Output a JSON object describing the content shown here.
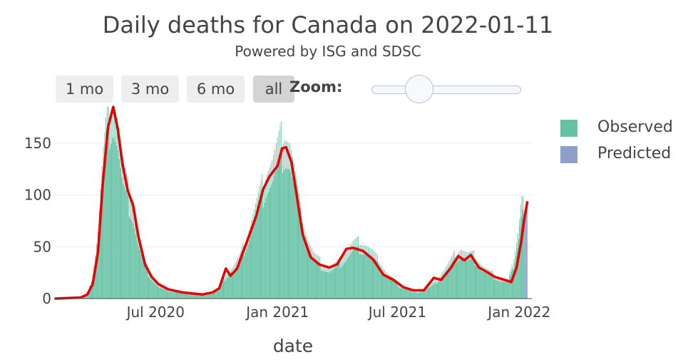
{
  "header": {
    "title": "Daily deaths for Canada on 2022-01-11",
    "subtitle": "Powered by ISG and SDSC"
  },
  "controls": {
    "range_buttons": [
      {
        "label": "1 mo",
        "active": false
      },
      {
        "label": "3 mo",
        "active": false
      },
      {
        "label": "6 mo",
        "active": false
      },
      {
        "label": "all",
        "active": true
      }
    ],
    "zoom_label": "Zoom:",
    "zoom_level": 0.27
  },
  "colors": {
    "observed": "#66c2a5",
    "predicted": "#8da0cb",
    "trend": "#e60000",
    "grid": "#e8ecf2"
  },
  "chart_data": {
    "type": "bar",
    "title": "Daily deaths for Canada on 2022-01-11",
    "subtitle": "Powered by ISG and SDSC",
    "xlabel": "date",
    "ylabel": "",
    "ylim": [
      0,
      185
    ],
    "xlim": [
      "2020-02-01",
      "2022-01-20"
    ],
    "x_ticks": [
      {
        "date": "2020-07-01",
        "label": "Jul 2020"
      },
      {
        "date": "2021-01-01",
        "label": "Jan 2021"
      },
      {
        "date": "2021-07-01",
        "label": "Jul 2021"
      },
      {
        "date": "2022-01-01",
        "label": "Jan 2022"
      }
    ],
    "y_ticks": [
      0,
      50,
      100,
      150
    ],
    "grid": true,
    "legend_position": "right",
    "series": [
      {
        "name": "Observed",
        "type": "bar",
        "color": "#66c2a5",
        "points": [
          [
            "2020-02-01",
            0
          ],
          [
            "2020-03-01",
            0
          ],
          [
            "2020-03-10",
            1
          ],
          [
            "2020-03-20",
            5
          ],
          [
            "2020-03-28",
            20
          ],
          [
            "2020-04-05",
            60
          ],
          [
            "2020-04-12",
            125
          ],
          [
            "2020-04-20",
            170
          ],
          [
            "2020-04-28",
            185
          ],
          [
            "2020-05-05",
            160
          ],
          [
            "2020-05-12",
            120
          ],
          [
            "2020-05-20",
            100
          ],
          [
            "2020-05-28",
            85
          ],
          [
            "2020-06-05",
            55
          ],
          [
            "2020-06-15",
            32
          ],
          [
            "2020-06-25",
            20
          ],
          [
            "2020-07-05",
            12
          ],
          [
            "2020-07-20",
            8
          ],
          [
            "2020-08-10",
            6
          ],
          [
            "2020-08-25",
            5
          ],
          [
            "2020-09-10",
            4
          ],
          [
            "2020-09-25",
            6
          ],
          [
            "2020-10-05",
            10
          ],
          [
            "2020-10-15",
            22
          ],
          [
            "2020-10-25",
            28
          ],
          [
            "2020-11-05",
            38
          ],
          [
            "2020-11-15",
            55
          ],
          [
            "2020-11-25",
            75
          ],
          [
            "2020-12-05",
            95
          ],
          [
            "2020-12-15",
            115
          ],
          [
            "2020-12-25",
            125
          ],
          [
            "2021-01-05",
            145
          ],
          [
            "2021-01-12",
            150
          ],
          [
            "2021-01-20",
            140
          ],
          [
            "2021-01-28",
            110
          ],
          [
            "2021-02-05",
            80
          ],
          [
            "2021-02-15",
            55
          ],
          [
            "2021-02-25",
            40
          ],
          [
            "2021-03-10",
            32
          ],
          [
            "2021-03-20",
            28
          ],
          [
            "2021-04-01",
            32
          ],
          [
            "2021-04-15",
            42
          ],
          [
            "2021-04-25",
            50
          ],
          [
            "2021-05-05",
            52
          ],
          [
            "2021-05-15",
            48
          ],
          [
            "2021-05-25",
            42
          ],
          [
            "2021-06-05",
            33
          ],
          [
            "2021-06-15",
            23
          ],
          [
            "2021-06-25",
            18
          ],
          [
            "2021-07-05",
            12
          ],
          [
            "2021-07-15",
            10
          ],
          [
            "2021-07-25",
            6
          ],
          [
            "2021-08-05",
            7
          ],
          [
            "2021-08-15",
            10
          ],
          [
            "2021-08-25",
            14
          ],
          [
            "2021-09-05",
            22
          ],
          [
            "2021-09-15",
            30
          ],
          [
            "2021-09-25",
            40
          ],
          [
            "2021-10-05",
            45
          ],
          [
            "2021-10-15",
            40
          ],
          [
            "2021-10-25",
            40
          ],
          [
            "2021-11-05",
            30
          ],
          [
            "2021-11-15",
            25
          ],
          [
            "2021-11-25",
            22
          ],
          [
            "2021-12-05",
            18
          ],
          [
            "2021-12-15",
            17
          ],
          [
            "2021-12-22",
            30
          ],
          [
            "2021-12-30",
            60
          ],
          [
            "2022-01-03",
            85
          ],
          [
            "2022-01-06",
            95
          ],
          [
            "2022-01-08",
            85
          ]
        ]
      },
      {
        "name": "Predicted",
        "type": "bar",
        "color": "#8da0cb",
        "points": [
          [
            "2022-01-09",
            78
          ],
          [
            "2022-01-10",
            82
          ],
          [
            "2022-01-11",
            86
          ],
          [
            "2022-01-12",
            90
          ],
          [
            "2022-01-13",
            93
          ]
        ]
      },
      {
        "name": "",
        "type": "line",
        "color": "#e60000",
        "points": [
          [
            "2020-02-01",
            0
          ],
          [
            "2020-03-10",
            1
          ],
          [
            "2020-03-20",
            4
          ],
          [
            "2020-03-28",
            14
          ],
          [
            "2020-04-05",
            45
          ],
          [
            "2020-04-12",
            110
          ],
          [
            "2020-04-20",
            165
          ],
          [
            "2020-04-28",
            185
          ],
          [
            "2020-05-05",
            163
          ],
          [
            "2020-05-12",
            130
          ],
          [
            "2020-05-20",
            104
          ],
          [
            "2020-05-28",
            90
          ],
          [
            "2020-06-05",
            60
          ],
          [
            "2020-06-15",
            33
          ],
          [
            "2020-06-25",
            21
          ],
          [
            "2020-07-05",
            14
          ],
          [
            "2020-07-20",
            9
          ],
          [
            "2020-08-10",
            6
          ],
          [
            "2020-08-25",
            5
          ],
          [
            "2020-09-10",
            4
          ],
          [
            "2020-09-25",
            6
          ],
          [
            "2020-10-05",
            10
          ],
          [
            "2020-10-15",
            29
          ],
          [
            "2020-10-22",
            22
          ],
          [
            "2020-11-01",
            29
          ],
          [
            "2020-11-10",
            45
          ],
          [
            "2020-11-20",
            62
          ],
          [
            "2020-11-30",
            80
          ],
          [
            "2020-12-10",
            105
          ],
          [
            "2020-12-20",
            118
          ],
          [
            "2021-01-01",
            128
          ],
          [
            "2021-01-08",
            145
          ],
          [
            "2021-01-14",
            146
          ],
          [
            "2021-01-22",
            132
          ],
          [
            "2021-01-30",
            100
          ],
          [
            "2021-02-08",
            62
          ],
          [
            "2021-02-20",
            40
          ],
          [
            "2021-03-05",
            33
          ],
          [
            "2021-03-20",
            30
          ],
          [
            "2021-04-01",
            33
          ],
          [
            "2021-04-15",
            48
          ],
          [
            "2021-04-25",
            49
          ],
          [
            "2021-05-10",
            46
          ],
          [
            "2021-05-25",
            38
          ],
          [
            "2021-06-10",
            23
          ],
          [
            "2021-06-25",
            18
          ],
          [
            "2021-07-10",
            11
          ],
          [
            "2021-07-25",
            8
          ],
          [
            "2021-08-10",
            8
          ],
          [
            "2021-08-25",
            20
          ],
          [
            "2021-09-05",
            18
          ],
          [
            "2021-09-20",
            30
          ],
          [
            "2021-10-01",
            41
          ],
          [
            "2021-10-10",
            37
          ],
          [
            "2021-10-20",
            42
          ],
          [
            "2021-11-01",
            30
          ],
          [
            "2021-11-15",
            25
          ],
          [
            "2021-11-25",
            21
          ],
          [
            "2021-12-10",
            18
          ],
          [
            "2021-12-20",
            16
          ],
          [
            "2021-12-28",
            30
          ],
          [
            "2022-01-04",
            55
          ],
          [
            "2022-01-08",
            75
          ],
          [
            "2022-01-13",
            93
          ]
        ]
      }
    ]
  }
}
